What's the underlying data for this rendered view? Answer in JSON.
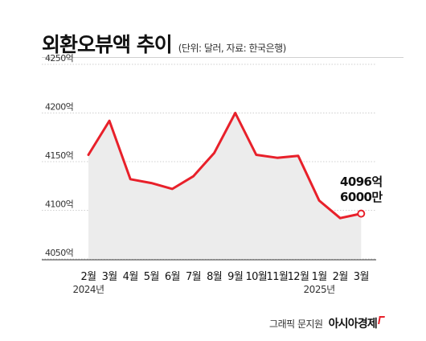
{
  "header": {
    "title": "외환오뷰액 추이",
    "subtitle": "(단위: 달러, 자료: 한국은행)"
  },
  "footer": {
    "credit": "그래픽 문지원",
    "brand": "아시아경제"
  },
  "chart_data": {
    "type": "area",
    "title": "외환오뷰액 추이",
    "subtitle": "(단위: 달러, 자료: 한국은행)",
    "categories": [
      "2월",
      "3월",
      "4월",
      "5월",
      "6월",
      "7월",
      "8월",
      "9월",
      "10월",
      "11월",
      "12월",
      "1월",
      "2월",
      "3월"
    ],
    "year_labels": [
      {
        "index": 0,
        "label": "2024년"
      },
      {
        "index": 11,
        "label": "2025년"
      }
    ],
    "values": [
      4157,
      4192,
      4132,
      4128,
      4122,
      4135,
      4159,
      4200,
      4157,
      4154,
      4156,
      4110,
      4092,
      4096.6
    ],
    "y_ticks": [
      "4050억",
      "4100억",
      "4150억",
      "4200억",
      "4250억"
    ],
    "ylim": [
      4050,
      4250
    ],
    "grid": true,
    "colors": {
      "line": "#e8202a",
      "area": "#ececec",
      "grid": "#cfcfcf"
    },
    "callout": {
      "index": 13,
      "line1": "4096억",
      "line2": "6000만"
    }
  }
}
